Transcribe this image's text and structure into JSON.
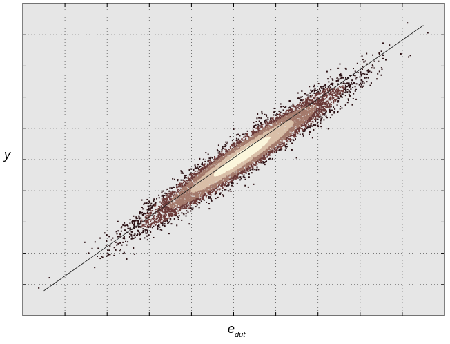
{
  "chart_data": {
    "type": "scatter",
    "title": "",
    "xlabel": "e",
    "xlabel_subscript": "dut",
    "ylabel": "y",
    "xlim": [
      -5,
      5
    ],
    "ylim": [
      -5,
      5
    ],
    "x_ticks": 10,
    "y_ticks": 10,
    "grid": true,
    "grid_style": "dotted",
    "background_color": "#e6e6e6",
    "colormap": [
      "#2a0f12",
      "#6b3a38",
      "#a47a6c",
      "#d9bfa8",
      "#fbf6dc"
    ],
    "fit_line": {
      "x": [
        -4.5,
        4.5
      ],
      "y": [
        -4.2,
        4.3
      ],
      "color": "#222222"
    },
    "point_cloud": {
      "center": [
        0.2,
        0.1
      ],
      "major_axis_half_length": 3.6,
      "minor_axis_half_width": 0.45,
      "slope": 0.94,
      "approx_points": 9000
    }
  }
}
